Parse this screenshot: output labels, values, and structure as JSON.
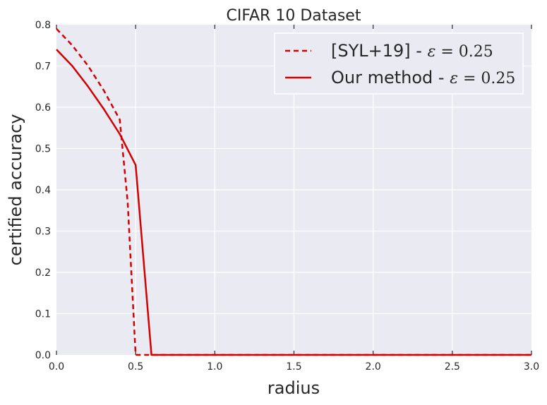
{
  "chart_data": {
    "type": "line",
    "title": "CIFAR 10 Dataset",
    "xlabel": "radius",
    "ylabel": "certified accuracy",
    "xlim": [
      0,
      3.0
    ],
    "ylim": [
      0,
      0.8
    ],
    "xticks": [
      0.0,
      0.5,
      1.0,
      1.5,
      2.0,
      2.5,
      3.0
    ],
    "xtick_labels": [
      "0.0",
      "0.5",
      "1.0",
      "1.5",
      "2.0",
      "2.5",
      "3.0"
    ],
    "yticks": [
      0.0,
      0.1,
      0.2,
      0.3,
      0.4,
      0.5,
      0.6,
      0.7,
      0.8
    ],
    "ytick_labels": [
      "0.0",
      "0.1",
      "0.2",
      "0.3",
      "0.4",
      "0.5",
      "0.6",
      "0.7",
      "0.8"
    ],
    "grid": true,
    "legend_position": "top-right",
    "series": [
      {
        "name": "[SYL+19] - ε = 0.25",
        "name_prefix": "[SYL+19] - ",
        "name_math": "ε",
        "name_value": " = 0.25",
        "style": "dashed",
        "color": "#d40000",
        "x": [
          0.0,
          0.1,
          0.2,
          0.3,
          0.4,
          0.45,
          0.5,
          0.55,
          3.0
        ],
        "y": [
          0.79,
          0.75,
          0.7,
          0.64,
          0.57,
          0.37,
          0.0,
          0.0,
          0.0
        ]
      },
      {
        "name": "Our method - ε = 0.25",
        "name_prefix": "Our method - ",
        "name_math": "ε",
        "name_value": " = 0.25",
        "style": "solid",
        "color": "#d40000",
        "x": [
          0.0,
          0.1,
          0.2,
          0.3,
          0.4,
          0.5,
          0.6,
          3.0
        ],
        "y": [
          0.74,
          0.7,
          0.65,
          0.595,
          0.535,
          0.46,
          0.0,
          0.0
        ]
      }
    ]
  },
  "colors": {
    "plot_background": "#eaeaf2",
    "grid": "#ffffff",
    "series": "#d40000"
  }
}
